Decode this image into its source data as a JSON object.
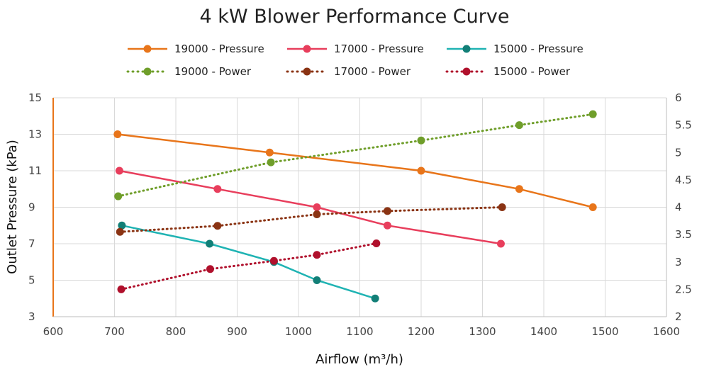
{
  "chart_data": {
    "type": "line",
    "title": "4 kW Blower Performance Curve",
    "xlabel": "Airflow (m³/h)",
    "ylabel": "Outlet Pressure (kPa)",
    "y2label": "",
    "xlim": [
      600,
      1600
    ],
    "ylim": [
      3,
      15
    ],
    "y2lim": [
      2,
      6
    ],
    "x_ticks": [
      600,
      700,
      800,
      900,
      1000,
      1100,
      1200,
      1300,
      1400,
      1500,
      1600
    ],
    "y_ticks": [
      3,
      5,
      7,
      9,
      11,
      13,
      15
    ],
    "y2_ticks": [
      "2",
      "2.5",
      "3",
      "3.5",
      "4",
      "4.5",
      "5",
      "5.5",
      "6"
    ],
    "grid": true,
    "legend_position": "top",
    "series": [
      {
        "name": "19000 - Pressure",
        "axis": "left",
        "style": "solid",
        "color": "#e8751a",
        "x": [
          705,
          953,
          1200,
          1360,
          1480
        ],
        "y": [
          13,
          12,
          11,
          10,
          9
        ]
      },
      {
        "name": "17000 - Pressure",
        "axis": "left",
        "style": "solid",
        "color": "#e83e5c",
        "x": [
          708,
          868,
          1030,
          1145,
          1330
        ],
        "y": [
          11,
          10,
          9,
          8,
          7
        ]
      },
      {
        "name": "15000 - Pressure",
        "axis": "left",
        "style": "solid",
        "color": "#1fb3b3",
        "pointColor": "#127f77",
        "x": [
          712,
          855,
          960,
          1030,
          1125
        ],
        "y": [
          8,
          7,
          6,
          5,
          4
        ]
      },
      {
        "name": "19000 - Power",
        "axis": "right",
        "style": "dotted",
        "color": "#6f9e2a",
        "x": [
          706,
          955,
          1200,
          1360,
          1480
        ],
        "y": [
          4.2,
          4.82,
          5.22,
          5.5,
          5.7
        ]
      },
      {
        "name": "17000 - Power",
        "axis": "right",
        "style": "dotted",
        "color": "#8a3313",
        "x": [
          709,
          868,
          1030,
          1145,
          1332
        ],
        "y": [
          3.55,
          3.66,
          3.87,
          3.93,
          4.0
        ]
      },
      {
        "name": "15000 - Power",
        "axis": "right",
        "style": "dotted",
        "color": "#b0102c",
        "x": [
          711,
          856,
          960,
          1030,
          1127
        ],
        "y": [
          2.5,
          2.87,
          3.02,
          3.13,
          3.34
        ]
      }
    ]
  }
}
